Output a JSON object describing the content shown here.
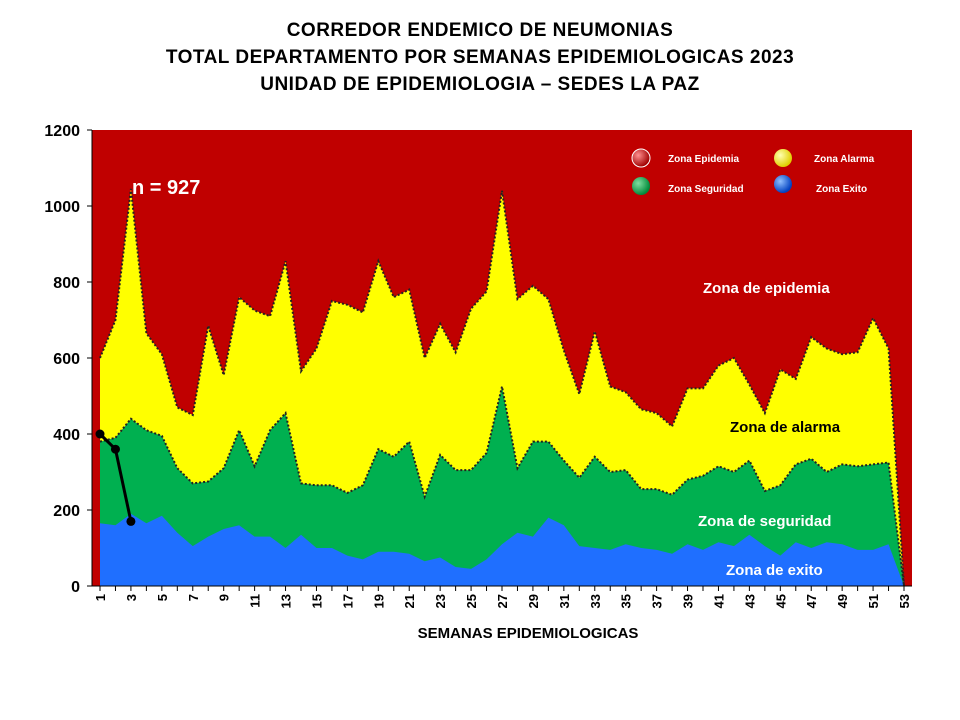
{
  "titles": {
    "line1": "CORREDOR ENDEMICO DE NEUMONIAS",
    "line2": "TOTAL DEPARTAMENTO POR SEMANAS EPIDEMIOLOGICAS 2023",
    "line3": "UNIDAD DE EPIDEMIOLOGIA – SEDES LA PAZ"
  },
  "chart_data": {
    "type": "area",
    "xlabel": "SEMANAS EPIDEMIOLOGICAS",
    "ylabel": "",
    "ylim": [
      0,
      1200
    ],
    "yticks": [
      0,
      200,
      400,
      600,
      800,
      1000,
      1200
    ],
    "xlim": [
      1,
      53
    ],
    "xticks": [
      1,
      3,
      5,
      7,
      9,
      11,
      13,
      15,
      17,
      19,
      21,
      23,
      25,
      27,
      29,
      31,
      33,
      35,
      37,
      39,
      41,
      43,
      45,
      47,
      49,
      51,
      53
    ],
    "x": [
      1,
      2,
      3,
      4,
      5,
      6,
      7,
      8,
      9,
      10,
      11,
      12,
      13,
      14,
      15,
      16,
      17,
      18,
      19,
      20,
      21,
      22,
      23,
      24,
      25,
      26,
      27,
      28,
      29,
      30,
      31,
      32,
      33,
      34,
      35,
      36,
      37,
      38,
      39,
      40,
      41,
      42,
      43,
      44,
      45,
      46,
      47,
      48,
      49,
      50,
      51,
      52,
      53
    ],
    "series": [
      {
        "name": "Zona Exito",
        "color": "#1f6fff",
        "values": [
          165,
          160,
          190,
          165,
          185,
          140,
          105,
          130,
          150,
          160,
          130,
          130,
          100,
          135,
          100,
          100,
          80,
          70,
          90,
          90,
          85,
          65,
          75,
          50,
          45,
          70,
          110,
          140,
          130,
          180,
          160,
          105,
          100,
          95,
          110,
          100,
          95,
          85,
          110,
          95,
          115,
          105,
          135,
          105,
          80,
          115,
          100,
          115,
          110,
          95,
          95,
          110,
          0
        ]
      },
      {
        "name": "Zona Seguridad",
        "color": "#00b050",
        "values": [
          380,
          390,
          440,
          410,
          395,
          310,
          270,
          275,
          310,
          410,
          315,
          410,
          455,
          270,
          265,
          265,
          245,
          265,
          360,
          340,
          380,
          235,
          345,
          305,
          305,
          350,
          525,
          310,
          380,
          380,
          330,
          285,
          340,
          300,
          305,
          255,
          255,
          240,
          280,
          290,
          315,
          300,
          330,
          250,
          265,
          320,
          335,
          300,
          320,
          315,
          320,
          325,
          0
        ]
      },
      {
        "name": "Zona Alarma",
        "color": "#ffff00",
        "values": [
          600,
          700,
          1045,
          665,
          610,
          470,
          450,
          685,
          555,
          760,
          725,
          710,
          855,
          565,
          625,
          750,
          740,
          720,
          855,
          760,
          780,
          600,
          690,
          615,
          730,
          775,
          1040,
          755,
          790,
          755,
          620,
          505,
          670,
          525,
          510,
          465,
          455,
          420,
          520,
          520,
          580,
          600,
          530,
          455,
          570,
          545,
          655,
          625,
          610,
          615,
          705,
          625,
          0
        ]
      }
    ],
    "observed": {
      "name": "n = 927",
      "x": [
        1,
        2,
        3
      ],
      "values": [
        400,
        360,
        170
      ]
    },
    "background_zone": {
      "name": "Zona Epidemia",
      "color": "#c00000"
    },
    "zone_labels": [
      "Zona de epidemia",
      "Zona de alarma",
      "Zona de  seguridad",
      "Zona de exito"
    ],
    "legend": [
      "Zona Epidemia",
      "Zona Alarma",
      "Zona Seguridad",
      "Zona Exito"
    ],
    "annotation": "n = 927",
    "grid": false,
    "legend_position": "top-right"
  }
}
